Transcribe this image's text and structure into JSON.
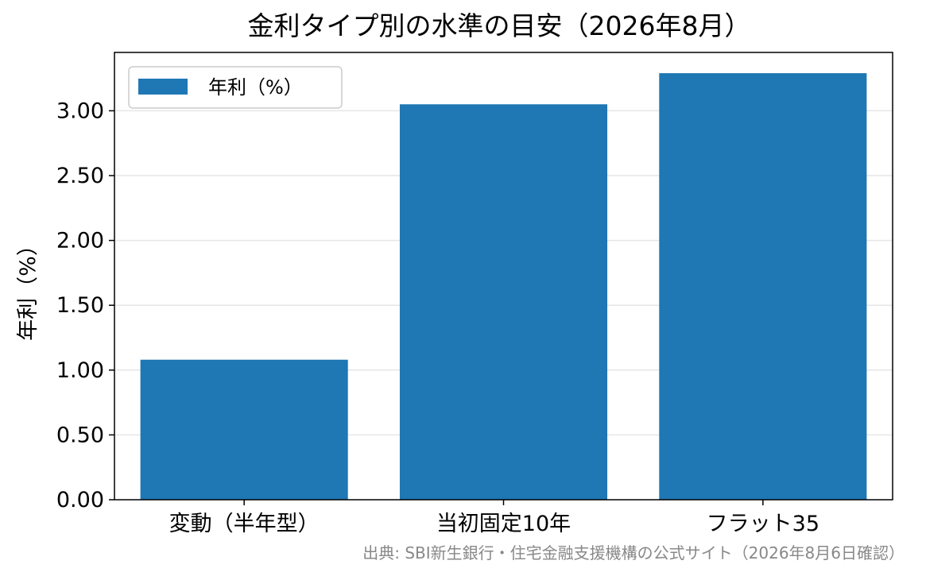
{
  "chart_data": {
    "type": "bar",
    "title": "金利タイプ別の水準の目安（2026年8月）",
    "xlabel": "",
    "ylabel": "年利（%）",
    "categories": [
      "変動（半年型）",
      "当初固定10年",
      "フラット35"
    ],
    "series": [
      {
        "name": "年利（%）",
        "values": [
          1.08,
          3.05,
          3.29
        ]
      }
    ],
    "ylim": [
      0,
      3.45
    ],
    "yticks": [
      "0.00",
      "0.50",
      "1.00",
      "1.50",
      "2.00",
      "2.50",
      "3.00"
    ],
    "grid": "y",
    "legend": "top-left",
    "source": "出典: SBI新生銀行・住宅金融支援機構の公式サイト（2026年8月6日確認）",
    "colors": {
      "bar": "#1f77b4",
      "grid": "#e6e6e6",
      "source": "#888888"
    }
  }
}
